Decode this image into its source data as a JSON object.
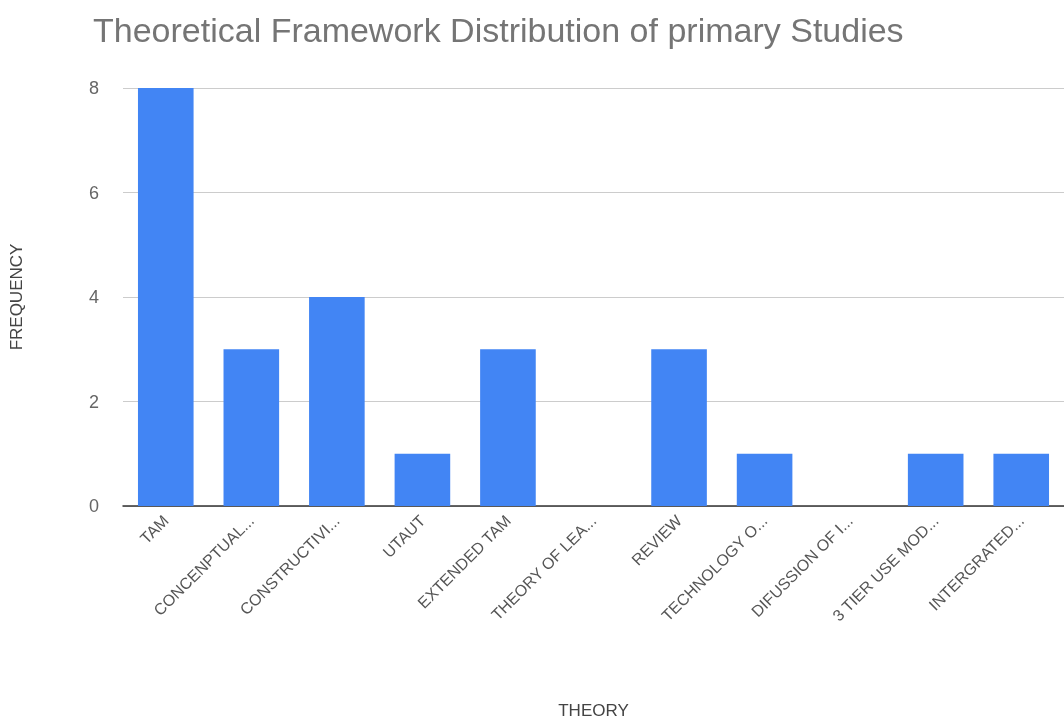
{
  "chart_data": {
    "type": "bar",
    "title": "Theoretical Framework Distribution of primary Studies",
    "xlabel": "THEORY",
    "ylabel": "FREQUENCY",
    "categories": [
      "TAM",
      "CONCENPTUAL...",
      "CONSTRUCTIVI...",
      "UTAUT",
      "EXTENDED TAM",
      "THEORY OF LEA...",
      "REVIEW",
      "TECHNOLOGY O...",
      "DIFUSSION OF I...",
      "3 TIER USE MOD...",
      "INTERGRATED..."
    ],
    "values": [
      8,
      3,
      4,
      1,
      3,
      0,
      3,
      1,
      0,
      1,
      1
    ],
    "color": "#4285f4",
    "ylim": [
      0,
      8
    ],
    "yticks": [
      0,
      2,
      4,
      6,
      8
    ],
    "grid": "y"
  }
}
